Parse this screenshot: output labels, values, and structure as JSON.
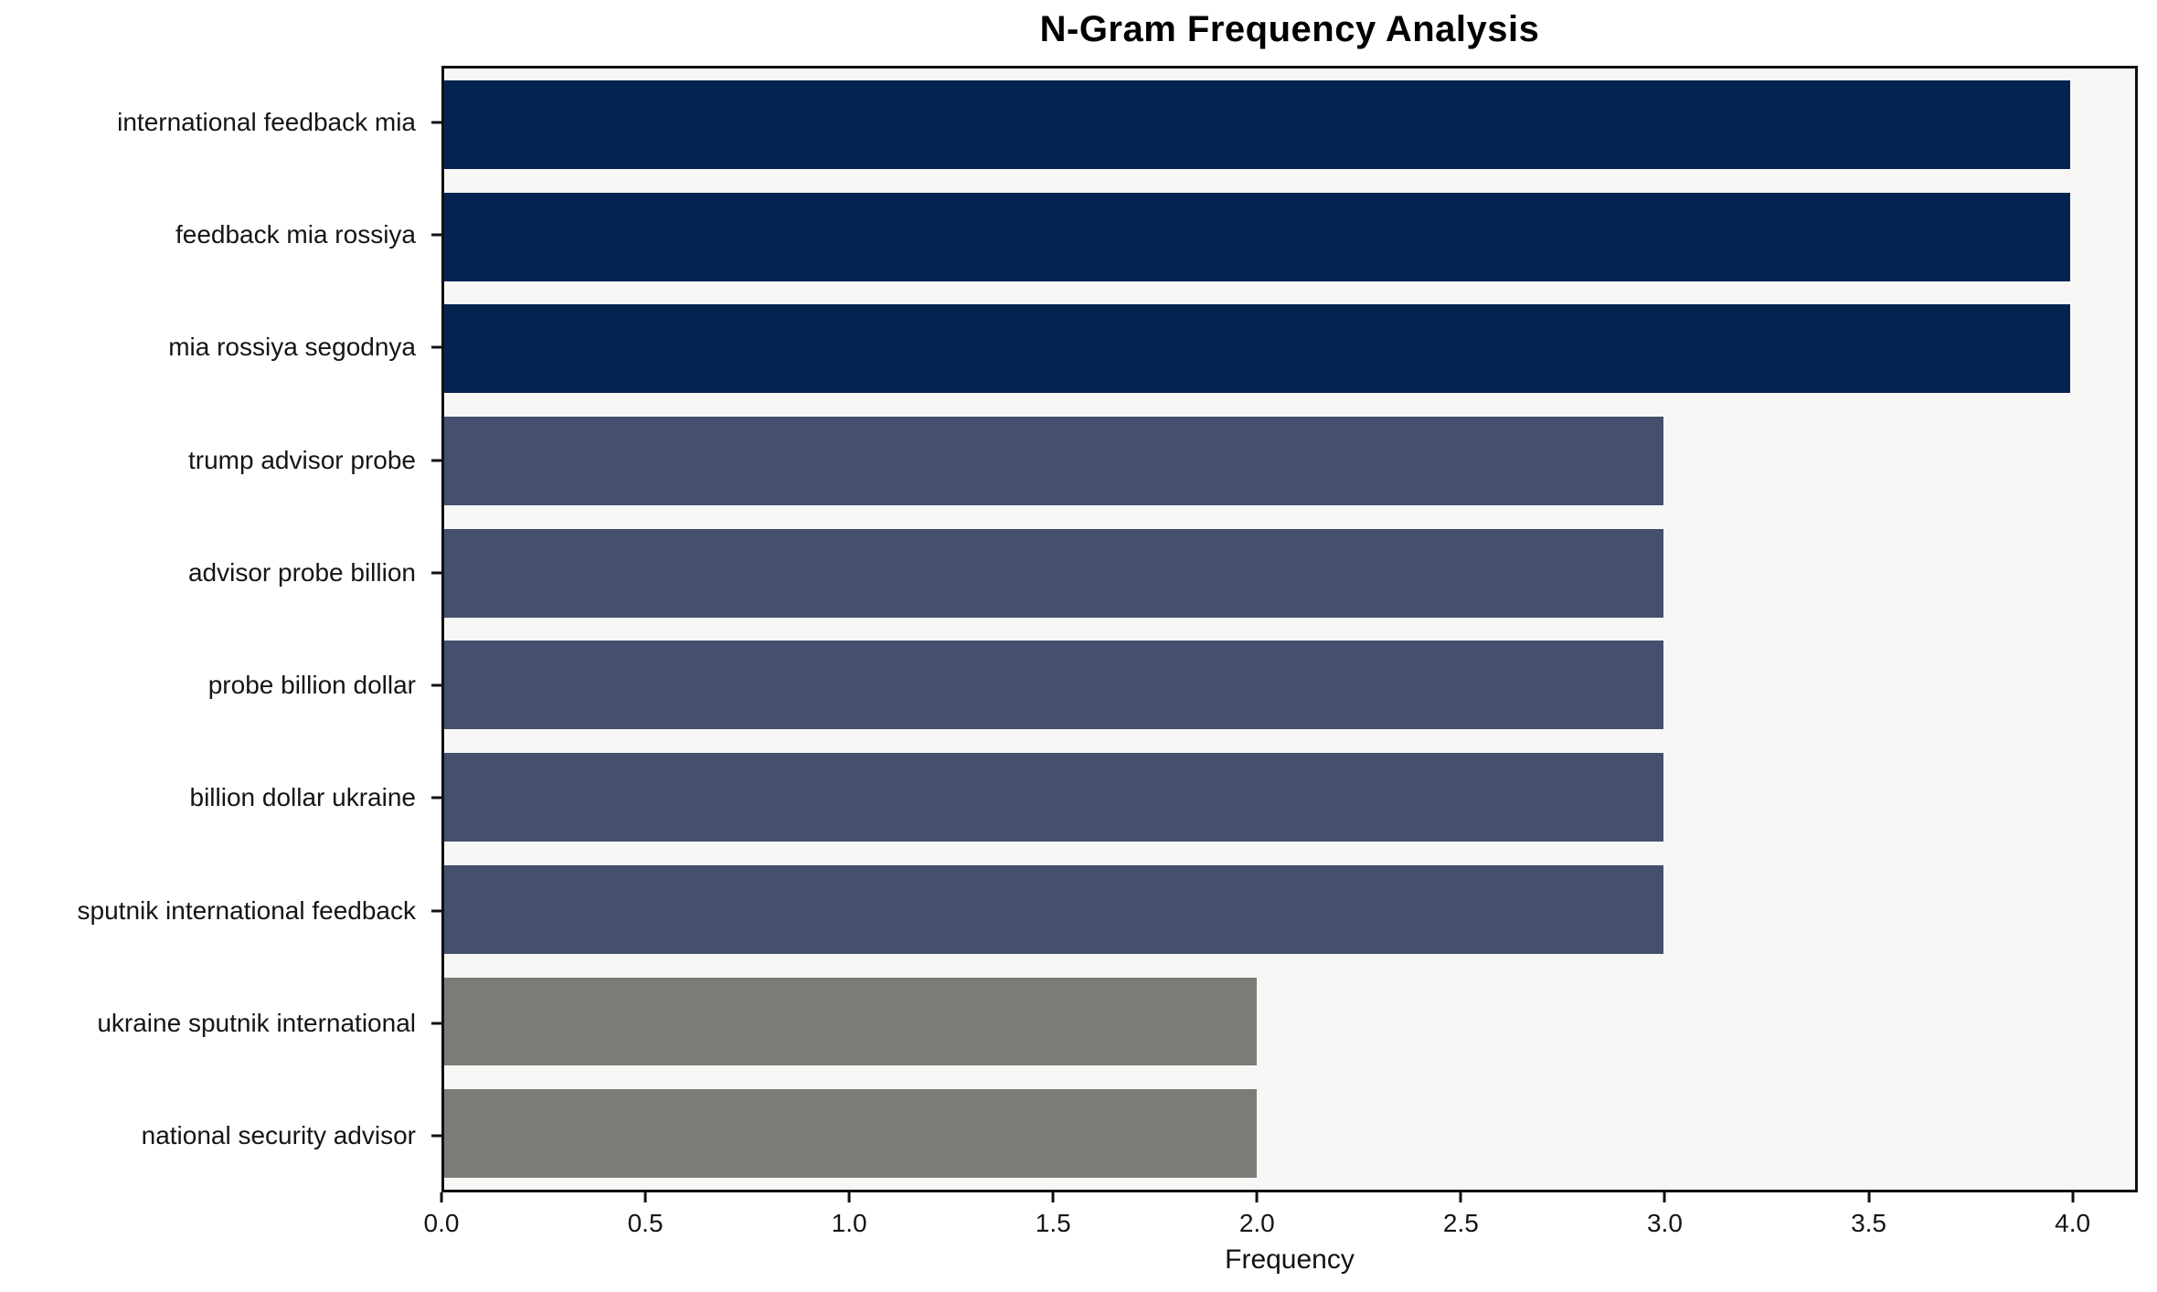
{
  "chart_data": {
    "type": "bar",
    "orientation": "horizontal",
    "title": "N-Gram Frequency Analysis",
    "xlabel": "Frequency",
    "ylabel": "",
    "categories": [
      "international feedback mia",
      "feedback mia rossiya",
      "mia rossiya segodnya",
      "trump advisor probe",
      "advisor probe billion",
      "probe billion dollar",
      "billion dollar ukraine",
      "sputnik international feedback",
      "ukraine sputnik international",
      "national security advisor"
    ],
    "values": [
      4,
      4,
      4,
      3,
      3,
      3,
      3,
      3,
      2,
      2
    ],
    "bar_colors": [
      "#032450",
      "#032450",
      "#032450",
      "#454F6E",
      "#454F6E",
      "#454F6E",
      "#454F6E",
      "#454F6E",
      "#7B7B77",
      "#7B7B77"
    ],
    "xlim": [
      0,
      4.16
    ],
    "xtick_values": [
      0.0,
      0.5,
      1.0,
      1.5,
      2.0,
      2.5,
      3.0,
      3.5,
      4.0
    ],
    "xticks": [
      "0.0",
      "0.5",
      "1.0",
      "1.5",
      "2.0",
      "2.5",
      "3.0",
      "3.5",
      "4.0"
    ],
    "grid": false,
    "legend": null,
    "plot_background": "#F7F7F6",
    "figure_background": "#FFFFFF"
  }
}
